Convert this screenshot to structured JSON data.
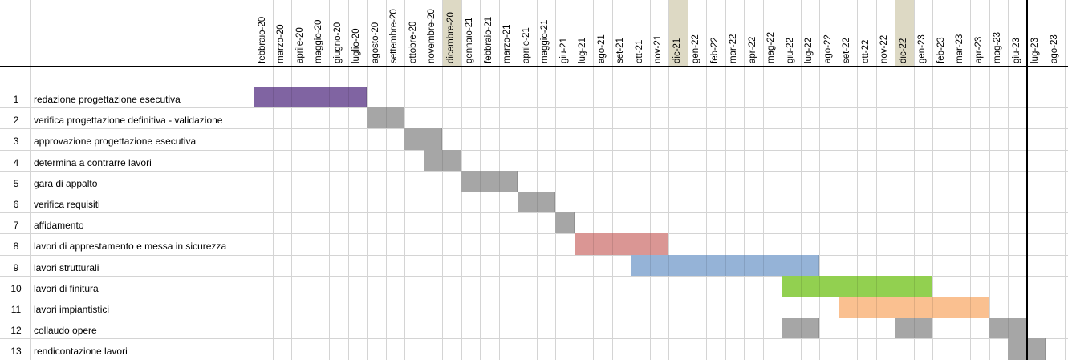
{
  "months": [
    "febbraio-20",
    "marzo-20",
    "aprile-20",
    "maggio-20",
    "giugno-20",
    "luglio-20",
    "agosto-20",
    "settembre-20",
    "ottobre-20",
    "novembre-20",
    "dicembre-20",
    "gennaio-21",
    "febbraio-21",
    "marzo-21",
    "aprile-21",
    "maggio-21",
    "giu-21",
    "lug-21",
    "ago-21",
    "set-21",
    "ott-21",
    "nov-21",
    "dic-21",
    "gen-22",
    "feb-22",
    "mar-22",
    "apr-22",
    "mag-22",
    "giu-22",
    "lug-22",
    "ago-22",
    "set-22",
    "ott-22",
    "nov-22",
    "dic-22",
    "gen-23",
    "feb-23",
    "mar-23",
    "apr-23",
    "mag-23",
    "giu-23",
    "lug-23",
    "ago-23"
  ],
  "highlighted_months": [
    "dicembre-20",
    "dic-21",
    "dic-22"
  ],
  "current_marker_after": "giu-23",
  "colors": {
    "purple": "#8064a2",
    "gray": "#a6a6a6",
    "red": "#da9694",
    "blue": "#95b3d7",
    "green": "#92d050",
    "orange": "#fac090",
    "highlight": "#ddd9c4"
  },
  "tasks": [
    {
      "num": "1",
      "label": "redazione progettazione esecutiva",
      "bars": [
        {
          "start": "febbraio-20",
          "end": "luglio-20",
          "color": "purple"
        }
      ]
    },
    {
      "num": "2",
      "label": "verifica progettazione definitiva - validazione",
      "bars": [
        {
          "start": "agosto-20",
          "end": "settembre-20",
          "color": "gray"
        }
      ]
    },
    {
      "num": "3",
      "label": "approvazione progettazione esecutiva",
      "bars": [
        {
          "start": "ottobre-20",
          "end": "novembre-20",
          "color": "gray"
        }
      ]
    },
    {
      "num": "4",
      "label": "determina a contrarre lavori",
      "bars": [
        {
          "start": "novembre-20",
          "end": "dicembre-20",
          "color": "gray"
        }
      ]
    },
    {
      "num": "5",
      "label": "gara di appalto",
      "bars": [
        {
          "start": "gennaio-21",
          "end": "marzo-21",
          "color": "gray"
        }
      ]
    },
    {
      "num": "6",
      "label": "verifica requisiti",
      "bars": [
        {
          "start": "aprile-21",
          "end": "maggio-21",
          "color": "gray"
        }
      ]
    },
    {
      "num": "7",
      "label": "affidamento",
      "bars": [
        {
          "start": "giu-21",
          "end": "giu-21",
          "color": "gray"
        }
      ]
    },
    {
      "num": "8",
      "label": "lavori di apprestamento e messa in sicurezza",
      "bars": [
        {
          "start": "lug-21",
          "end": "nov-21",
          "color": "red"
        }
      ]
    },
    {
      "num": "9",
      "label": "lavori strutturali",
      "bars": [
        {
          "start": "ott-21",
          "end": "lug-22",
          "color": "blue"
        }
      ]
    },
    {
      "num": "10",
      "label": "lavori di finitura",
      "bars": [
        {
          "start": "giu-22",
          "end": "gen-23",
          "color": "green"
        }
      ]
    },
    {
      "num": "11",
      "label": "lavori impiantistici",
      "bars": [
        {
          "start": "set-22",
          "end": "apr-23",
          "color": "orange"
        }
      ]
    },
    {
      "num": "12",
      "label": "collaudo opere",
      "bars": [
        {
          "start": "giu-22",
          "end": "lug-22",
          "color": "gray"
        },
        {
          "start": "dic-22",
          "end": "gen-23",
          "color": "gray"
        },
        {
          "start": "mag-23",
          "end": "giu-23",
          "color": "gray"
        }
      ]
    },
    {
      "num": "13",
      "label": "rendicontazione lavori",
      "bars": [
        {
          "start": "giu-23",
          "end": "lug-23",
          "color": "gray"
        }
      ]
    }
  ]
}
